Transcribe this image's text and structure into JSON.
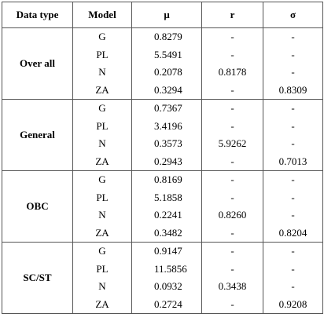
{
  "headers": {
    "data_type": "Data type",
    "model": "Model",
    "mu": "μ",
    "r": "r",
    "sigma": "σ"
  },
  "groups": [
    {
      "label": "Over all",
      "rows": [
        {
          "model": "G",
          "mu": "0.8279",
          "r": "-",
          "sigma": "-"
        },
        {
          "model": "PL",
          "mu": "5.5491",
          "r": "-",
          "sigma": "-"
        },
        {
          "model": "N",
          "mu": "0.2078",
          "r": "0.8178",
          "sigma": "-"
        },
        {
          "model": "ZA",
          "mu": "0.3294",
          "r": "-",
          "sigma": "0.8309"
        }
      ]
    },
    {
      "label": "General",
      "rows": [
        {
          "model": "G",
          "mu": "0.7367",
          "r": "-",
          "sigma": "-"
        },
        {
          "model": "PL",
          "mu": "3.4196",
          "r": "-",
          "sigma": "-"
        },
        {
          "model": "N",
          "mu": "0.3573",
          "r": "5.9262",
          "sigma": "-"
        },
        {
          "model": "ZA",
          "mu": "0.2943",
          "r": "-",
          "sigma": "0.7013"
        }
      ]
    },
    {
      "label": "OBC",
      "rows": [
        {
          "model": "G",
          "mu": "0.8169",
          "r": "-",
          "sigma": "-"
        },
        {
          "model": "PL",
          "mu": "5.1858",
          "r": "-",
          "sigma": "-"
        },
        {
          "model": "N",
          "mu": "0.2241",
          "r": "0.8260",
          "sigma": "-"
        },
        {
          "model": "ZA",
          "mu": "0.3482",
          "r": "-",
          "sigma": "0.8204"
        }
      ]
    },
    {
      "label": "SC/ST",
      "rows": [
        {
          "model": "G",
          "mu": "0.9147",
          "r": "-",
          "sigma": "-"
        },
        {
          "model": "PL",
          "mu": "11.5856",
          "r": "-",
          "sigma": "-"
        },
        {
          "model": "N",
          "mu": "0.0932",
          "r": "0.3438",
          "sigma": "-"
        },
        {
          "model": "ZA",
          "mu": "0.2724",
          "r": "-",
          "sigma": "0.9208"
        }
      ]
    }
  ]
}
